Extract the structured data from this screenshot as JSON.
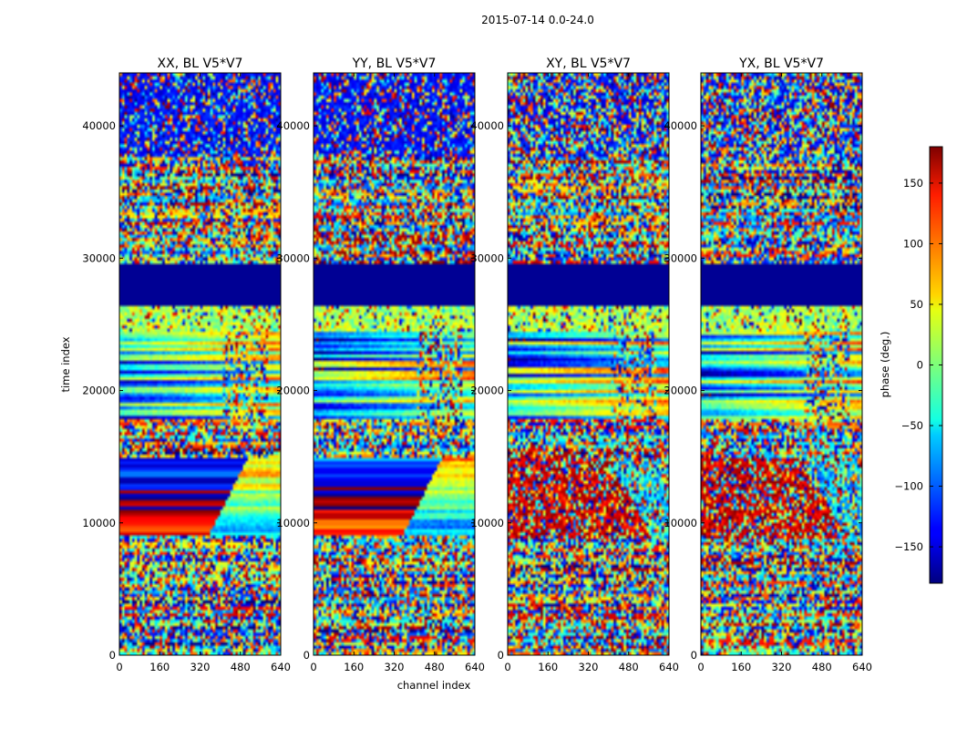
{
  "suptitle": "2015-07-14 0.0-24.0",
  "colormap": "jet",
  "chart_data": [
    {
      "type": "heatmap",
      "title": "XX, BL V5*V7",
      "xlabel": "channel index",
      "ylabel": "time index",
      "xlim": [
        0,
        640
      ],
      "ylim": [
        0,
        44000
      ],
      "xticks": [
        0,
        160,
        320,
        480,
        640
      ],
      "yticks": [
        0,
        10000,
        20000,
        30000,
        40000
      ],
      "ytick_labels": [
        "0",
        "10000",
        "20000",
        "30000",
        "40000"
      ]
    },
    {
      "type": "heatmap",
      "title": "YY, BL V5*V7",
      "xlabel": "channel index",
      "xlim": [
        0,
        640
      ],
      "ylim": [
        0,
        44000
      ],
      "xticks": [
        0,
        160,
        320,
        480,
        640
      ],
      "yticks": [
        0,
        10000,
        20000,
        30000,
        40000
      ],
      "ytick_labels": [
        "0",
        "10000",
        "20000",
        "30000",
        "40000"
      ]
    },
    {
      "type": "heatmap",
      "title": "XY, BL V5*V7",
      "xlim": [
        0,
        640
      ],
      "ylim": [
        0,
        44000
      ],
      "xticks": [
        0,
        160,
        320,
        480,
        640
      ],
      "yticks": [
        0,
        10000,
        20000,
        30000,
        40000
      ],
      "ytick_labels": [
        "0",
        "10000",
        "20000",
        "30000",
        "40000"
      ]
    },
    {
      "type": "heatmap",
      "title": "YX, BL V5*V7",
      "xlim": [
        0,
        640
      ],
      "ylim": [
        0,
        44000
      ],
      "xticks": [
        0,
        160,
        320,
        480,
        640
      ],
      "yticks": [
        0,
        10000,
        20000,
        30000,
        40000
      ],
      "ytick_labels": [
        "0",
        "10000",
        "20000",
        "30000",
        "40000"
      ]
    }
  ],
  "colorbar": {
    "label": "phase (deg.)",
    "vmin": -180,
    "vmax": 180,
    "ticks": [
      150,
      100,
      50,
      0,
      -50,
      -100,
      -150
    ],
    "tick_labels": [
      "150",
      "100",
      "50",
      "0",
      "−50",
      "−100",
      "−150"
    ]
  }
}
